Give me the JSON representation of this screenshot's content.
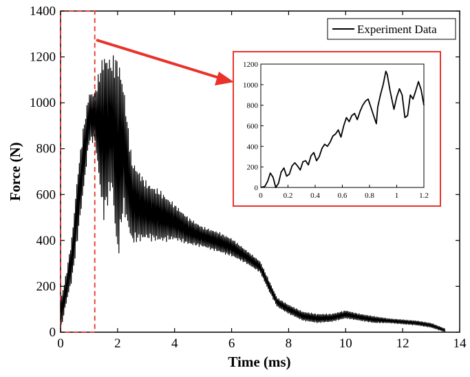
{
  "chart_data": [
    {
      "type": "line",
      "title": "",
      "xlabel": "Time (ms)",
      "ylabel": "Force (N)",
      "xlim": [
        0,
        14
      ],
      "ylim": [
        0,
        1400
      ],
      "xticks": [
        0,
        2,
        4,
        6,
        8,
        10,
        12,
        14
      ],
      "yticks": [
        0,
        200,
        400,
        600,
        800,
        1000,
        1200,
        1400
      ],
      "grid": false,
      "legend": {
        "position": "top-right",
        "entries": [
          "Experiment Data"
        ]
      },
      "highlight_region": {
        "x": [
          0,
          1.2
        ],
        "y": [
          0,
          1400
        ],
        "style": "red dashed"
      },
      "series": [
        {
          "name": "Experiment Data",
          "color": "#000000",
          "envelope": {
            "x": [
              0,
              0.2,
              0.4,
              0.6,
              0.8,
              1.0,
              1.2,
              1.5,
              1.8,
              2.0,
              2.2,
              2.5,
              3.0,
              3.5,
              4.0,
              4.5,
              5.0,
              5.5,
              6.0,
              6.5,
              7.0,
              7.3,
              7.6,
              8.0,
              8.5,
              9.0,
              9.5,
              10.0,
              10.5,
              11.0,
              11.5,
              12.0,
              12.5,
              13.0,
              13.5
            ],
            "high": [
              140,
              260,
              420,
              700,
              900,
              1050,
              1050,
              1235,
              1200,
              1235,
              1100,
              760,
              660,
              620,
              560,
              500,
              460,
              440,
              410,
              360,
              310,
              230,
              150,
              120,
              90,
              80,
              80,
              95,
              80,
              70,
              60,
              55,
              50,
              40,
              15
            ],
            "low": [
              0,
              120,
              220,
              400,
              600,
              820,
              830,
              470,
              620,
              280,
              520,
              380,
              400,
              390,
              400,
              380,
              370,
              350,
              330,
              300,
              260,
              180,
              110,
              80,
              50,
              40,
              45,
              60,
              50,
              40,
              40,
              35,
              30,
              20,
              0
            ]
          }
        }
      ]
    },
    {
      "type": "line",
      "title": "",
      "xlabel": "",
      "ylabel": "",
      "xlim": [
        0,
        1.2
      ],
      "ylim": [
        0,
        1200
      ],
      "xticks": [
        0,
        0.2,
        0.4,
        0.6,
        0.8,
        1,
        1.2
      ],
      "yticks": [
        0,
        200,
        400,
        600,
        800,
        1000,
        1200
      ],
      "grid": false,
      "series": [
        {
          "color": "#000000",
          "x": [
            0,
            0.03,
            0.05,
            0.07,
            0.09,
            0.11,
            0.13,
            0.15,
            0.17,
            0.19,
            0.21,
            0.23,
            0.25,
            0.27,
            0.29,
            0.31,
            0.33,
            0.35,
            0.37,
            0.39,
            0.41,
            0.43,
            0.45,
            0.47,
            0.49,
            0.51,
            0.53,
            0.55,
            0.57,
            0.59,
            0.61,
            0.63,
            0.65,
            0.67,
            0.69,
            0.71,
            0.73,
            0.75,
            0.77,
            0.79,
            0.81,
            0.83,
            0.85,
            0.86,
            0.88,
            0.9,
            0.92,
            0.93,
            0.95,
            0.97,
            0.98,
            1.0,
            1.02,
            1.04,
            1.06,
            1.08,
            1.1,
            1.12,
            1.14,
            1.16,
            1.18,
            1.2
          ],
          "y": [
            0,
            10,
            60,
            140,
            100,
            0,
            40,
            150,
            190,
            110,
            130,
            210,
            240,
            210,
            170,
            250,
            260,
            220,
            310,
            340,
            260,
            300,
            380,
            420,
            400,
            440,
            500,
            520,
            560,
            490,
            600,
            680,
            640,
            700,
            720,
            660,
            740,
            800,
            840,
            860,
            780,
            700,
            620,
            780,
            900,
            1000,
            1130,
            1100,
            950,
            820,
            760,
            880,
            960,
            900,
            680,
            700,
            900,
            860,
            940,
            1030,
            950,
            800
          ]
        }
      ]
    }
  ]
}
